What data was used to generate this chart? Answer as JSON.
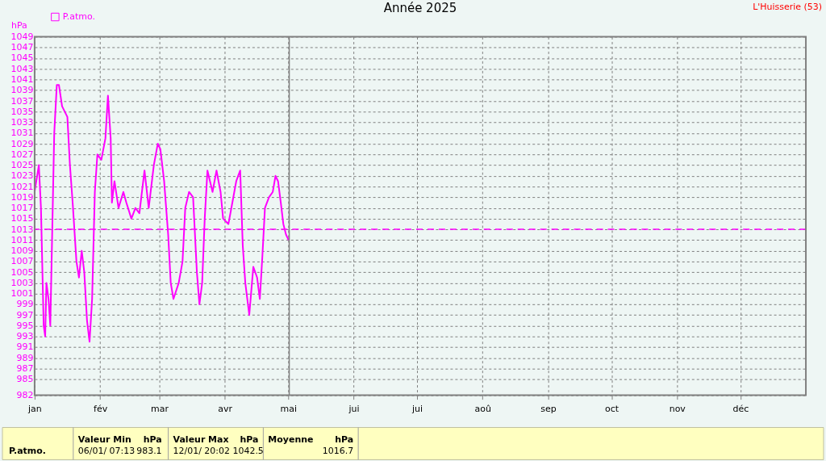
{
  "chart_data": {
    "type": "line",
    "title": "Année 2025",
    "ylabel": "hPa",
    "x": [
      "2025-01-01T00:00",
      "2025-01-03T00:00",
      "2025-01-04T00:00",
      "2025-01-05T07:00",
      "2025-01-06T00:00",
      "2025-01-06T14:00",
      "2025-01-07T14:00",
      "2025-01-08T10:00",
      "2025-01-10T07:00",
      "2025-01-11T12:00",
      "2025-01-12T12:00",
      "2025-01-14T00:00",
      "2025-01-16T12:00",
      "2025-01-17T17:00",
      "2025-01-19T00:00",
      "2025-01-20T19:00",
      "2025-01-22T00:00",
      "2025-01-23T07:00",
      "2025-01-24T12:00",
      "2025-01-25T19:00",
      "2025-01-27T00:00",
      "2025-01-28T05:00",
      "2025-01-29T12:00",
      "2025-01-30T17:00",
      "2025-02-01T14:00",
      "2025-02-03T12:00",
      "2025-02-04T17:00",
      "2025-02-06T00:00",
      "2025-02-06T14:00",
      "2025-02-07T19:00",
      "2025-02-09T17:00",
      "2025-02-12T00:00",
      "2025-02-13T10:00",
      "2025-02-15T19:00",
      "2025-02-17T17:00",
      "2025-02-19T14:00",
      "2025-02-22T00:00",
      "2025-02-24T00:00",
      "2025-02-26T10:00",
      "2025-02-28T07:00",
      "2025-03-01T12:00",
      "2025-03-03T07:00",
      "2025-03-05T05:00",
      "2025-03-06T10:00",
      "2025-03-07T17:00",
      "2025-03-10T05:00",
      "2025-03-12T00:00",
      "2025-03-13T07:00",
      "2025-03-15T02:00",
      "2025-03-17T00:00",
      "2025-03-18T19:00",
      "2025-03-20T00:00",
      "2025-03-21T07:00",
      "2025-03-22T12:00",
      "2025-03-23T19:00",
      "2025-03-25T00:00",
      "2025-03-26T05:00",
      "2025-03-28T02:00",
      "2025-03-30T00:00",
      "2025-03-31T05:00",
      "2025-04-02T17:00",
      "2025-04-04T14:00",
      "2025-04-06T10:00",
      "2025-04-08T07:00",
      "2025-04-09T12:00",
      "2025-04-10T17:00",
      "2025-04-12T14:00",
      "2025-04-14T12:00",
      "2025-04-16T07:00",
      "2025-04-17T14:00",
      "2025-04-18T19:00",
      "2025-04-20T00:00",
      "2025-04-21T22:00",
      "2025-04-23T17:00",
      "2025-04-25T00:00",
      "2025-04-26T05:00",
      "2025-04-27T12:00",
      "2025-04-28T17:00",
      "2025-04-30T00:00",
      "2025-05-01T05:00"
    ],
    "series": [
      {
        "name": "P.atmo.",
        "color": "#ff00ff",
        "values": [
          1020,
          1025,
          1017,
          995,
          993,
          1003,
          1000,
          995,
          1031,
          1040,
          1040,
          1036,
          1034,
          1025,
          1018,
          1007,
          1004,
          1009,
          1005,
          996,
          992,
          1000,
          1020,
          1027,
          1026,
          1030,
          1038,
          1030,
          1018,
          1022,
          1017,
          1020,
          1018,
          1015,
          1017,
          1016,
          1024,
          1017,
          1025,
          1029,
          1028,
          1022,
          1012,
          1003,
          1000,
          1003,
          1007,
          1017,
          1020,
          1019,
          1005,
          999,
          1003,
          1015,
          1024,
          1022,
          1020,
          1024,
          1020,
          1015,
          1014,
          1018,
          1022,
          1024,
          1010,
          1003,
          997,
          1006,
          1004,
          1000,
          1008,
          1017,
          1019,
          1020,
          1023,
          1022,
          1018,
          1014,
          1012,
          1011
        ]
      }
    ],
    "xlim": [
      "2025-01-01T00:00",
      "2026-01-01T00:00"
    ],
    "xticks": [
      {
        "value": "2025-01-01T00:00",
        "label": "jan"
      },
      {
        "value": "2025-02-01T00:00",
        "label": "fév"
      },
      {
        "value": "2025-03-01T00:00",
        "label": "mar"
      },
      {
        "value": "2025-04-01T00:00",
        "label": "avr"
      },
      {
        "value": "2025-05-01T00:00",
        "label": "mai"
      },
      {
        "value": "2025-06-01T00:00",
        "label": "jui"
      },
      {
        "value": "2025-07-01T00:00",
        "label": "jui"
      },
      {
        "value": "2025-08-01T00:00",
        "label": "aoû"
      },
      {
        "value": "2025-09-01T00:00",
        "label": "sep"
      },
      {
        "value": "2025-10-01T00:00",
        "label": "oct"
      },
      {
        "value": "2025-11-01T00:00",
        "label": "nov"
      },
      {
        "value": "2025-12-01T00:00",
        "label": "déc"
      }
    ],
    "ylim": [
      982,
      1049
    ],
    "yticks": [
      982,
      985,
      987,
      989,
      991,
      993,
      995,
      997,
      999,
      1001,
      1003,
      1005,
      1007,
      1009,
      1011,
      1013,
      1015,
      1017,
      1019,
      1021,
      1023,
      1025,
      1027,
      1029,
      1031,
      1033,
      1035,
      1037,
      1039,
      1041,
      1043,
      1045,
      1047,
      1049
    ],
    "ref_lines": [
      {
        "axis": "y",
        "value": 1013,
        "color": "#ff00ff",
        "line_style": "dashed"
      },
      {
        "axis": "x",
        "value": "2025-05-01T12:00",
        "color": "#808080",
        "line_style": "solid"
      }
    ],
    "grid": true,
    "legend": "top left",
    "marker": "none",
    "line_style": "solid",
    "annotations": [
      "L'Huisserie (53)",
      "P.atmo.",
      "Valeur Min",
      "hPa",
      "06/01/  07:13",
      "983.1",
      "Valeur Max",
      "hPa",
      "12/01/  20:02 1042.5",
      "Moyenne",
      "hPa",
      "1016.7"
    ]
  }
}
